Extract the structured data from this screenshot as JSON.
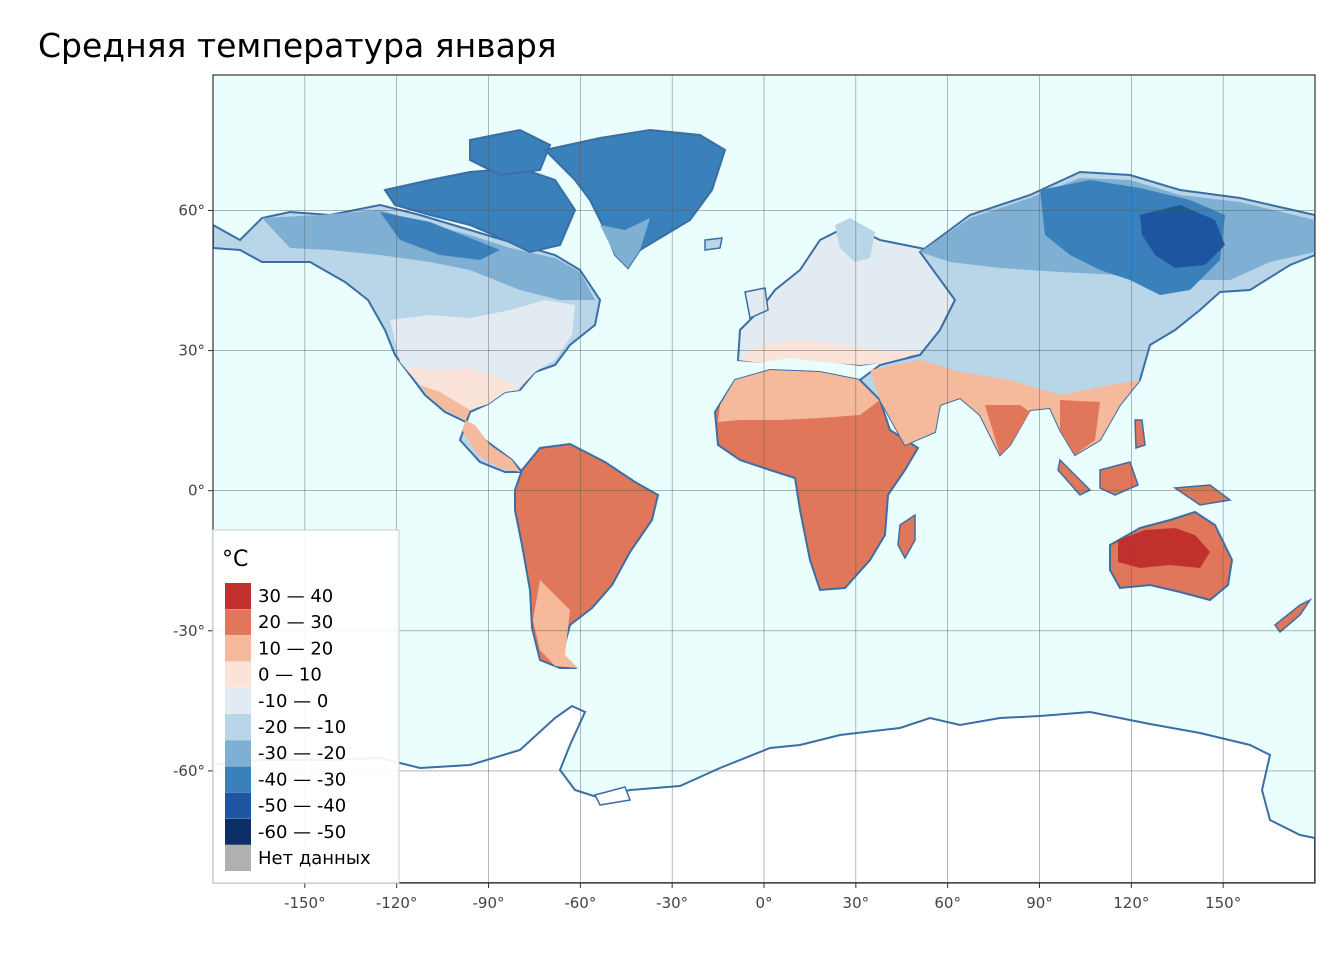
{
  "title": "Средняя температура января",
  "map": {
    "projection": "equirectangular",
    "lon_range": [
      -180,
      180
    ],
    "lat_range": [
      -84,
      89
    ],
    "grid": true,
    "ocean_color": "#eafefe",
    "coast_color": "#3b6ea5",
    "lon_ticks": [
      {
        "value": -150,
        "label": "-150°"
      },
      {
        "value": -120,
        "label": "-120°"
      },
      {
        "value": -90,
        "label": "-90°"
      },
      {
        "value": -60,
        "label": "-60°"
      },
      {
        "value": -30,
        "label": "-30°"
      },
      {
        "value": 0,
        "label": "0°"
      },
      {
        "value": 30,
        "label": "30°"
      },
      {
        "value": 60,
        "label": "60°"
      },
      {
        "value": 90,
        "label": "90°"
      },
      {
        "value": 120,
        "label": "120°"
      },
      {
        "value": 150,
        "label": "150°"
      }
    ],
    "lat_ticks": [
      {
        "value": 60,
        "label": "60°"
      },
      {
        "value": 30,
        "label": "30°"
      },
      {
        "value": 0,
        "label": "0°"
      },
      {
        "value": -30,
        "label": "-30°"
      },
      {
        "value": -60,
        "label": "-60°"
      }
    ]
  },
  "legend": {
    "title": "°C",
    "placement": "bottom-left",
    "items": [
      {
        "label": "30 — 40",
        "color": "#c0312e"
      },
      {
        "label": "20 — 30",
        "color": "#e0775a"
      },
      {
        "label": "10 — 20",
        "color": "#f5b99c"
      },
      {
        "label": "0 — 10",
        "color": "#fae4d9"
      },
      {
        "label": "-10 — 0",
        "color": "#e2eaf2"
      },
      {
        "label": "-20 — -10",
        "color": "#b9d5e8"
      },
      {
        "label": "-30 — -20",
        "color": "#7fb0d4"
      },
      {
        "label": "-40 — -30",
        "color": "#3a80ba"
      },
      {
        "label": "-50 — -40",
        "color": "#1e55a0"
      },
      {
        "label": "-60 — -50",
        "color": "#0b2f66"
      },
      {
        "label": "Нет данных",
        "color": "#b0b0b0"
      }
    ]
  }
}
